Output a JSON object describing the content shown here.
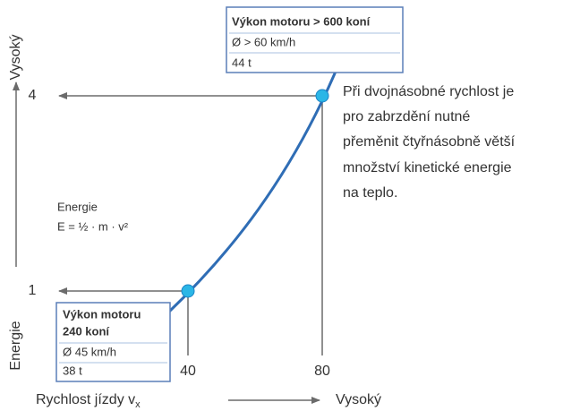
{
  "axes": {
    "y_top": "Vysoký",
    "y_bottom": "Energie",
    "x_label": "Rychlost jízdy v",
    "x_label_sub": "x",
    "x_right": "Vysoký"
  },
  "ticks": {
    "y": [
      "4",
      "1"
    ],
    "x": [
      "40",
      "80"
    ]
  },
  "formula": {
    "title": "Energie",
    "expression": "E = ½ · m · v²"
  },
  "box_high": {
    "title": "Výkon motoru > 600 koní",
    "speed": "Ø > 60 km/h",
    "mass": "44 t"
  },
  "box_low": {
    "title_line1": "Výkon motoru",
    "title_line2": "240 koní",
    "speed": "Ø 45 km/h",
    "mass": "38 t"
  },
  "note": [
    "Při dvojnásobné rychlost je",
    "pro zabrzdění nutné",
    "přeměnit čtyřnásobně větší",
    "množství kinetické energie",
    "na teplo."
  ]
}
